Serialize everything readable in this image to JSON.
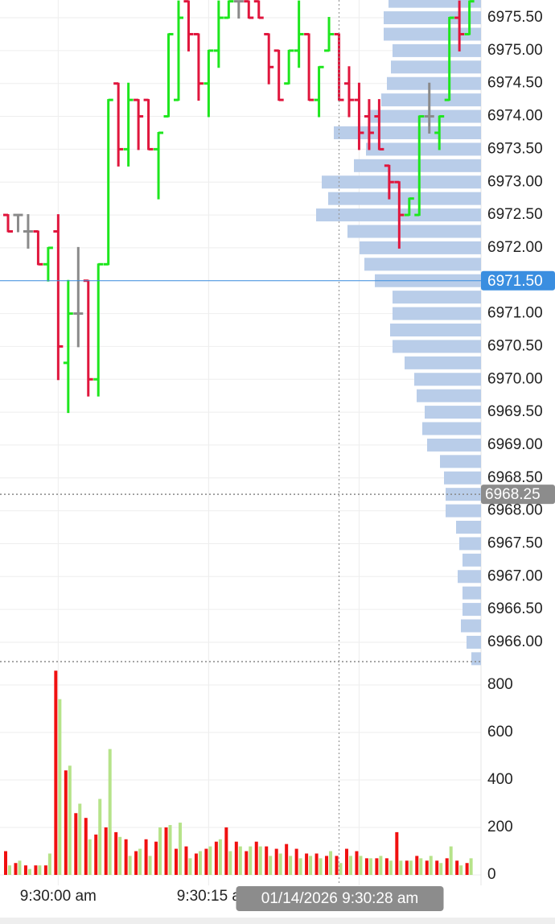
{
  "chart_data": [
    {
      "type": "ohlc",
      "categories": [
        null,
        null,
        null,
        null,
        null,
        "9:30:00 am",
        null,
        null,
        null,
        null,
        null,
        null,
        null,
        null,
        null,
        null,
        null,
        null,
        null,
        null,
        "9:30:15 a",
        null,
        null,
        null,
        null,
        null,
        null,
        null,
        null,
        null,
        null,
        null,
        null,
        null,
        null,
        null,
        null,
        null,
        null,
        null,
        null,
        null,
        null,
        null,
        null,
        null,
        null
      ],
      "open": [
        6972.5,
        6972.5,
        6972.25,
        6972.25,
        6971.75,
        6972.25,
        6970.25,
        6971,
        6971.5,
        6970,
        6971.75,
        6974.5,
        6973.5,
        6974.25,
        6974.25,
        6973.5,
        6974,
        6974.25,
        6975.75,
        6975.25,
        6974.5,
        6975,
        6975.5,
        6975.75,
        6975.75,
        6975.75,
        6975.25,
        6975,
        6974.5,
        6975,
        6975.25,
        6974.25,
        6975,
        6975.25,
        6974.5,
        6974.25,
        6974,
        6974,
        6973.25,
        6973,
        6972.5,
        6972.5,
        6974,
        6973.75,
        6974.25,
        6975.5,
        6975.25
      ],
      "high": [
        6972.5,
        6972.5,
        6972.5,
        6972.25,
        6972,
        6972.5,
        6971.5,
        6972,
        6971.5,
        6971.75,
        6974.25,
        6974.5,
        6974.5,
        6974.25,
        6974.25,
        6973.75,
        6975.25,
        6975.75,
        6975.75,
        6975.25,
        6975,
        6975.75,
        6975.75,
        6975.75,
        6975.75,
        6975.75,
        6975.25,
        6975,
        6975,
        6975.75,
        6975.25,
        6974.75,
        6975.5,
        6975.25,
        6974.75,
        6974.5,
        6974.25,
        6974.25,
        6973.25,
        6973,
        6972.75,
        6974,
        6974.5,
        6974,
        6975.5,
        6975.75,
        6975.75
      ],
      "low": [
        6972.25,
        6972.25,
        6972,
        6971.75,
        6971.5,
        6970,
        6969.5,
        6970.5,
        6969.75,
        6969.75,
        6971.75,
        6973.25,
        6973.25,
        6973.5,
        6973.5,
        6972.75,
        6974,
        6974.25,
        6975,
        6974.25,
        6974,
        6974.75,
        6975.5,
        6975.5,
        6975.5,
        6975.5,
        6974.5,
        6974.25,
        6974.5,
        6974.75,
        6974.25,
        6974,
        6975,
        6974.25,
        6974,
        6973.5,
        6973.5,
        6973.5,
        6972.75,
        6972,
        6972.5,
        6972.5,
        6973.75,
        6973.5,
        6974.25,
        6975,
        6975.25
      ],
      "close": [
        6972.25,
        6972.5,
        6972.25,
        6971.75,
        6972,
        6970.5,
        6971,
        6971,
        6970,
        6971.75,
        6974.25,
        6973.5,
        6974.25,
        6974,
        6973.5,
        6973.75,
        6975.25,
        6975.5,
        6975.25,
        6974.5,
        6975,
        6975.5,
        6975.75,
        6975.75,
        6975.5,
        6975.5,
        6974.75,
        6974.25,
        6975,
        6975.25,
        6974.25,
        6974.75,
        6975.25,
        6974.25,
        6974.25,
        6973.75,
        6973.75,
        6973.5,
        6973,
        6972.5,
        6972.75,
        6974,
        6974,
        6974,
        6975.5,
        6975.25,
        6975.75
      ],
      "up_color": "#1ee61e",
      "down_color": "#e0163d",
      "flat_color": "#8a8a8a",
      "ylim": [
        6965.73,
        6975.77
      ],
      "yticks": [
        {
          "value": 6966,
          "label": "6966.00"
        },
        {
          "value": 6966.5,
          "label": "6966.50"
        },
        {
          "value": 6967,
          "label": "6967.00"
        },
        {
          "value": 6967.5,
          "label": "6967.50"
        },
        {
          "value": 6968,
          "label": "6968.00"
        },
        {
          "value": 6968.5,
          "label": "6968.50"
        },
        {
          "value": 6969,
          "label": "6969.00"
        },
        {
          "value": 6969.5,
          "label": "6969.50"
        },
        {
          "value": 6970,
          "label": "6970.00"
        },
        {
          "value": 6970.5,
          "label": "6970.50"
        },
        {
          "value": 6971,
          "label": "6971.00"
        },
        {
          "value": 6971.5,
          "label": "6971.50"
        },
        {
          "value": 6972,
          "label": "6972.00"
        },
        {
          "value": 6972.5,
          "label": "6972.50"
        },
        {
          "value": 6973,
          "label": "6973.00"
        },
        {
          "value": 6973.5,
          "label": "6973.50"
        },
        {
          "value": 6974,
          "label": "6974.00"
        },
        {
          "value": 6974.5,
          "label": "6974.50"
        },
        {
          "value": 6975,
          "label": "6975.00"
        },
        {
          "value": 6975.5,
          "label": "6975.50"
        }
      ],
      "last_price": {
        "value": 6971.5,
        "label": "6971.50"
      },
      "last_price_color": "#3a8ee0",
      "crosshair_price": {
        "value": 6968.25,
        "label": "6968.25"
      },
      "crosshair_time": "01/14/2026 9:30:28 am",
      "grid": true
    },
    {
      "type": "profile",
      "categories": [
        6975.75,
        6975.5,
        6975.25,
        6975,
        6974.75,
        6974.5,
        6974.25,
        6974,
        6973.75,
        6973.5,
        6973.25,
        6973,
        6972.75,
        6972.5,
        6972.25,
        6972,
        6971.75,
        6971.5,
        6971.25,
        6971,
        6970.75,
        6970.5,
        6970.25,
        6970,
        6969.75,
        6969.5,
        6969.25,
        6969,
        6968.75,
        6968.5,
        6968.25,
        6968,
        6967.75,
        6967.5,
        6967.25,
        6967,
        6966.75,
        6966.5,
        6966.25,
        6966,
        6965.75
      ],
      "values": [
        115,
        121,
        121,
        110,
        112,
        117,
        124,
        138,
        183,
        143,
        158,
        198,
        190,
        205,
        166,
        151,
        145,
        132,
        110,
        110,
        113,
        110,
        95,
        83,
        80,
        70,
        73,
        67,
        51,
        46,
        44,
        44,
        31,
        27,
        23,
        29,
        23,
        23,
        25,
        18,
        12
      ],
      "color": "#b9cde9"
    },
    {
      "type": "volume",
      "series": [
        {
          "color": "#f01010",
          "values": [
            100,
            50,
            40,
            40,
            40,
            860,
            440,
            260,
            240,
            170,
            200,
            180,
            150,
            100,
            150,
            140,
            200,
            110,
            120,
            90,
            110,
            140,
            200,
            140,
            100,
            140,
            120,
            110,
            130,
            110,
            90,
            90,
            80,
            80,
            110,
            100,
            70,
            70,
            70,
            180,
            60,
            80,
            60,
            60,
            70,
            60,
            50
          ]
        },
        {
          "color": "#b6e38a",
          "values": [
            40,
            60,
            25,
            40,
            90,
            740,
            460,
            300,
            150,
            320,
            530,
            160,
            80,
            110,
            80,
            200,
            210,
            220,
            70,
            100,
            120,
            150,
            100,
            120,
            120,
            120,
            80,
            90,
            80,
            70,
            80,
            70,
            100,
            50,
            80,
            80,
            70,
            80,
            60,
            60,
            60,
            70,
            80,
            50,
            120,
            40,
            70
          ]
        }
      ],
      "ylim": [
        0,
        888
      ],
      "yticks": [
        0,
        200,
        400,
        600,
        800
      ]
    }
  ]
}
